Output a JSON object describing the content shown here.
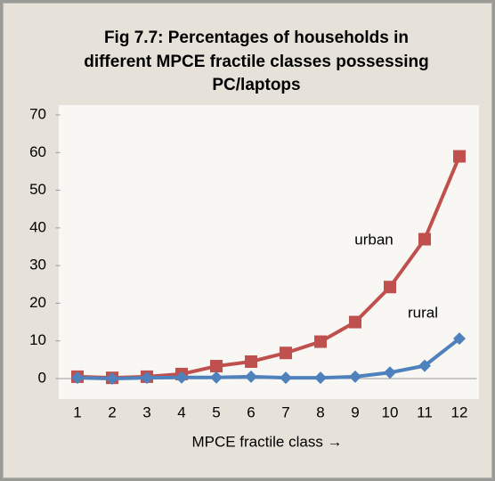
{
  "chart_data": {
    "type": "line",
    "title": "Fig 7.7: Percentages of households in different MPCE fractile classes possessing PC/laptops",
    "xlabel": "MPCE fractile class →",
    "categories": [
      "1",
      "2",
      "3",
      "4",
      "5",
      "6",
      "7",
      "8",
      "9",
      "10",
      "11",
      "12"
    ],
    "series": [
      {
        "name": "urban",
        "color": "#c0504d",
        "marker": "square",
        "values": [
          0.5,
          0.2,
          0.5,
          1.2,
          3.3,
          4.5,
          6.8,
          9.8,
          15,
          24.3,
          37,
          59
        ]
      },
      {
        "name": "rural",
        "color": "#4f81bd",
        "marker": "diamond",
        "values": [
          0.2,
          0,
          0.2,
          0.3,
          0.3,
          0.5,
          0.2,
          0.2,
          0.5,
          1.6,
          3.4,
          10.6
        ]
      }
    ],
    "ylim": [
      0,
      70
    ],
    "yticks": [
      0,
      10,
      20,
      30,
      40,
      50,
      60,
      70
    ],
    "grid": false
  }
}
